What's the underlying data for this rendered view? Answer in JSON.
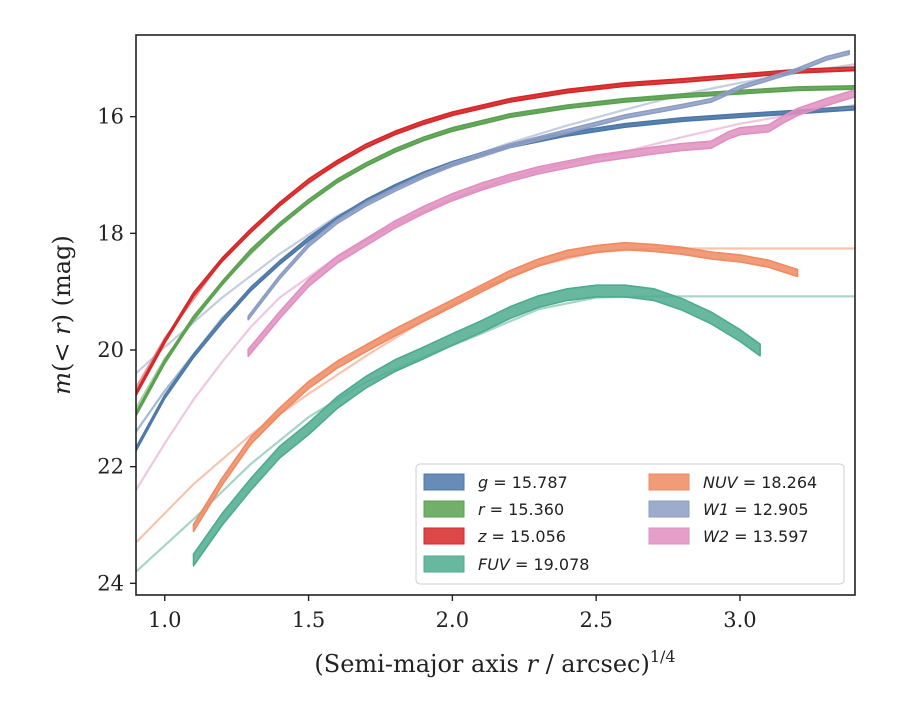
{
  "chart_data": {
    "type": "line",
    "title": "",
    "xlabel_main": "(Semi-major axis ",
    "xlabel_var": "r",
    "xlabel_tail": " / arcsec)",
    "xlabel_sup": "1/4",
    "ylabel_main": "m",
    "ylabel_paren": "(< ",
    "ylabel_var": "r",
    "ylabel_tail": ") (mag)",
    "xlim": [
      0.9,
      3.4
    ],
    "ylim": [
      24.2,
      14.6
    ],
    "y_inverted": true,
    "xticks": [
      1.0,
      1.5,
      2.0,
      2.5,
      3.0
    ],
    "xtick_labels": [
      "1.0",
      "1.5",
      "2.0",
      "2.5",
      "3.0"
    ],
    "yticks": [
      16,
      18,
      20,
      22,
      24
    ],
    "ytick_labels": [
      "16",
      "18",
      "20",
      "22",
      "24"
    ],
    "grid": false,
    "legend_position": "lower-right",
    "series": [
      {
        "name": "g",
        "legend_symbol": "g",
        "legend_value": "15.787",
        "color": "#4c78a8",
        "band_width": 0.06,
        "data": [
          [
            0.9,
            21.7
          ],
          [
            1.0,
            20.8
          ],
          [
            1.1,
            20.1
          ],
          [
            1.2,
            19.5
          ],
          [
            1.3,
            18.95
          ],
          [
            1.4,
            18.5
          ],
          [
            1.5,
            18.1
          ],
          [
            1.6,
            17.75
          ],
          [
            1.7,
            17.45
          ],
          [
            1.8,
            17.2
          ],
          [
            1.9,
            16.98
          ],
          [
            2.0,
            16.8
          ],
          [
            2.2,
            16.5
          ],
          [
            2.4,
            16.3
          ],
          [
            2.6,
            16.15
          ],
          [
            2.8,
            16.05
          ],
          [
            3.0,
            15.98
          ],
          [
            3.2,
            15.92
          ],
          [
            3.4,
            15.85
          ]
        ],
        "model": [
          [
            0.9,
            21.4
          ],
          [
            1.0,
            20.7
          ],
          [
            1.2,
            19.45
          ],
          [
            1.4,
            18.5
          ],
          [
            1.6,
            17.75
          ],
          [
            1.8,
            17.2
          ],
          [
            2.0,
            16.8
          ],
          [
            2.2,
            16.5
          ],
          [
            2.4,
            16.3
          ],
          [
            2.6,
            16.15
          ],
          [
            2.8,
            16.05
          ],
          [
            3.0,
            15.98
          ],
          [
            3.4,
            15.88
          ]
        ]
      },
      {
        "name": "r",
        "legend_symbol": "r",
        "legend_value": "15.360",
        "color": "#59a14f",
        "band_width": 0.06,
        "data": [
          [
            0.9,
            21.1
          ],
          [
            1.0,
            20.2
          ],
          [
            1.1,
            19.45
          ],
          [
            1.2,
            18.85
          ],
          [
            1.3,
            18.3
          ],
          [
            1.4,
            17.85
          ],
          [
            1.5,
            17.45
          ],
          [
            1.6,
            17.1
          ],
          [
            1.7,
            16.82
          ],
          [
            1.8,
            16.58
          ],
          [
            1.9,
            16.38
          ],
          [
            2.0,
            16.22
          ],
          [
            2.2,
            15.98
          ],
          [
            2.4,
            15.83
          ],
          [
            2.6,
            15.72
          ],
          [
            2.8,
            15.64
          ],
          [
            3.0,
            15.58
          ],
          [
            3.2,
            15.52
          ],
          [
            3.4,
            15.5
          ]
        ],
        "model": [
          [
            0.9,
            21.0
          ],
          [
            1.0,
            20.15
          ],
          [
            1.2,
            18.85
          ],
          [
            1.4,
            17.85
          ],
          [
            1.6,
            17.1
          ],
          [
            1.8,
            16.58
          ],
          [
            2.0,
            16.22
          ],
          [
            2.2,
            15.98
          ],
          [
            2.4,
            15.83
          ],
          [
            2.6,
            15.72
          ],
          [
            2.8,
            15.64
          ],
          [
            3.0,
            15.58
          ],
          [
            3.4,
            15.5
          ]
        ]
      },
      {
        "name": "z",
        "legend_symbol": "z",
        "legend_value": "15.056",
        "color": "#d62728",
        "band_width": 0.06,
        "data": [
          [
            0.9,
            20.75
          ],
          [
            1.0,
            19.85
          ],
          [
            1.1,
            19.05
          ],
          [
            1.2,
            18.45
          ],
          [
            1.3,
            17.95
          ],
          [
            1.4,
            17.5
          ],
          [
            1.5,
            17.1
          ],
          [
            1.6,
            16.78
          ],
          [
            1.7,
            16.5
          ],
          [
            1.8,
            16.28
          ],
          [
            1.9,
            16.1
          ],
          [
            2.0,
            15.95
          ],
          [
            2.2,
            15.72
          ],
          [
            2.4,
            15.56
          ],
          [
            2.6,
            15.45
          ],
          [
            2.8,
            15.38
          ],
          [
            3.0,
            15.3
          ],
          [
            3.2,
            15.22
          ],
          [
            3.4,
            15.18
          ]
        ],
        "model": [
          [
            0.9,
            20.65
          ],
          [
            1.0,
            19.8
          ],
          [
            1.2,
            18.45
          ],
          [
            1.4,
            17.5
          ],
          [
            1.6,
            16.78
          ],
          [
            1.8,
            16.28
          ],
          [
            2.0,
            15.95
          ],
          [
            2.2,
            15.72
          ],
          [
            2.4,
            15.56
          ],
          [
            2.6,
            15.45
          ],
          [
            2.8,
            15.36
          ],
          [
            3.0,
            15.29
          ],
          [
            3.4,
            15.2
          ]
        ]
      },
      {
        "name": "FUV",
        "legend_symbol": "FUV",
        "legend_value": "19.078",
        "color": "#4dab8f",
        "band_width": 0.2,
        "data": [
          [
            1.1,
            23.6
          ],
          [
            1.2,
            22.9
          ],
          [
            1.3,
            22.3
          ],
          [
            1.4,
            21.75
          ],
          [
            1.5,
            21.35
          ],
          [
            1.6,
            20.9
          ],
          [
            1.7,
            20.55
          ],
          [
            1.8,
            20.27
          ],
          [
            1.9,
            20.05
          ],
          [
            2.0,
            19.82
          ],
          [
            2.1,
            19.6
          ],
          [
            2.2,
            19.36
          ],
          [
            2.3,
            19.17
          ],
          [
            2.4,
            19.05
          ],
          [
            2.5,
            18.99
          ],
          [
            2.6,
            18.99
          ],
          [
            2.7,
            19.05
          ],
          [
            2.8,
            19.22
          ],
          [
            2.9,
            19.45
          ],
          [
            3.0,
            19.75
          ],
          [
            3.07,
            20.0
          ]
        ],
        "model": [
          [
            0.9,
            23.8
          ],
          [
            1.1,
            22.9
          ],
          [
            1.3,
            21.95
          ],
          [
            1.5,
            21.15
          ],
          [
            1.7,
            20.55
          ],
          [
            1.9,
            20.12
          ],
          [
            2.1,
            19.72
          ],
          [
            2.3,
            19.3
          ],
          [
            2.5,
            19.1
          ],
          [
            2.7,
            19.08
          ],
          [
            3.0,
            19.08
          ],
          [
            3.4,
            19.08
          ]
        ]
      },
      {
        "name": "NUV",
        "legend_symbol": "NUV",
        "legend_value": "18.264",
        "color": "#ef8a62",
        "band_width": 0.12,
        "data": [
          [
            1.1,
            23.05
          ],
          [
            1.2,
            22.25
          ],
          [
            1.3,
            21.55
          ],
          [
            1.4,
            21.05
          ],
          [
            1.5,
            20.6
          ],
          [
            1.6,
            20.25
          ],
          [
            1.7,
            19.97
          ],
          [
            1.8,
            19.7
          ],
          [
            1.9,
            19.45
          ],
          [
            2.0,
            19.2
          ],
          [
            2.1,
            18.95
          ],
          [
            2.2,
            18.7
          ],
          [
            2.3,
            18.5
          ],
          [
            2.4,
            18.35
          ],
          [
            2.5,
            18.27
          ],
          [
            2.6,
            18.22
          ],
          [
            2.7,
            18.25
          ],
          [
            2.8,
            18.3
          ],
          [
            2.9,
            18.38
          ],
          [
            3.0,
            18.43
          ],
          [
            3.1,
            18.52
          ],
          [
            3.2,
            18.68
          ]
        ],
        "model": [
          [
            0.9,
            23.3
          ],
          [
            1.1,
            22.3
          ],
          [
            1.3,
            21.45
          ],
          [
            1.5,
            20.75
          ],
          [
            1.7,
            20.1
          ],
          [
            1.9,
            19.5
          ],
          [
            2.1,
            18.95
          ],
          [
            2.3,
            18.55
          ],
          [
            2.5,
            18.32
          ],
          [
            2.7,
            18.26
          ],
          [
            3.0,
            18.26
          ],
          [
            3.4,
            18.26
          ]
        ]
      },
      {
        "name": "W1",
        "legend_symbol": "W1",
        "legend_value": "12.905",
        "color": "#8c9dc4",
        "band_width": 0.06,
        "data": [
          [
            1.29,
            19.45
          ],
          [
            1.4,
            18.75
          ],
          [
            1.5,
            18.2
          ],
          [
            1.6,
            17.8
          ],
          [
            1.7,
            17.5
          ],
          [
            1.8,
            17.25
          ],
          [
            1.9,
            17.02
          ],
          [
            2.0,
            16.82
          ],
          [
            2.2,
            16.5
          ],
          [
            2.4,
            16.25
          ],
          [
            2.6,
            16.0
          ],
          [
            2.8,
            15.82
          ],
          [
            2.9,
            15.72
          ],
          [
            3.0,
            15.5
          ],
          [
            3.1,
            15.35
          ],
          [
            3.2,
            15.2
          ],
          [
            3.3,
            15.0
          ],
          [
            3.38,
            14.9
          ]
        ],
        "model": [
          [
            0.9,
            20.4
          ],
          [
            1.0,
            19.95
          ],
          [
            1.2,
            19.1
          ],
          [
            1.4,
            18.35
          ],
          [
            1.6,
            17.7
          ],
          [
            1.8,
            17.2
          ],
          [
            2.0,
            16.8
          ],
          [
            2.2,
            16.45
          ],
          [
            2.4,
            16.15
          ],
          [
            2.6,
            15.88
          ],
          [
            2.8,
            15.62
          ],
          [
            3.0,
            15.42
          ],
          [
            3.2,
            15.25
          ],
          [
            3.4,
            15.1
          ]
        ]
      },
      {
        "name": "W2",
        "legend_symbol": "W2",
        "legend_value": "13.597",
        "color": "#e08fc0",
        "band_width": 0.12,
        "data": [
          [
            1.29,
            20.05
          ],
          [
            1.4,
            19.4
          ],
          [
            1.5,
            18.85
          ],
          [
            1.6,
            18.45
          ],
          [
            1.7,
            18.15
          ],
          [
            1.8,
            17.85
          ],
          [
            1.9,
            17.6
          ],
          [
            2.0,
            17.38
          ],
          [
            2.1,
            17.2
          ],
          [
            2.2,
            17.05
          ],
          [
            2.3,
            16.92
          ],
          [
            2.4,
            16.82
          ],
          [
            2.5,
            16.72
          ],
          [
            2.6,
            16.65
          ],
          [
            2.7,
            16.58
          ],
          [
            2.8,
            16.52
          ],
          [
            2.9,
            16.48
          ],
          [
            2.96,
            16.32
          ],
          [
            3.0,
            16.25
          ],
          [
            3.1,
            16.2
          ],
          [
            3.15,
            16.05
          ],
          [
            3.2,
            15.92
          ],
          [
            3.3,
            15.75
          ],
          [
            3.4,
            15.6
          ]
        ],
        "model": [
          [
            0.9,
            22.4
          ],
          [
            1.0,
            21.6
          ],
          [
            1.1,
            20.85
          ],
          [
            1.2,
            20.2
          ],
          [
            1.3,
            19.6
          ],
          [
            1.4,
            19.1
          ],
          [
            1.6,
            18.4
          ],
          [
            1.8,
            17.85
          ],
          [
            2.0,
            17.4
          ],
          [
            2.2,
            17.05
          ],
          [
            2.4,
            16.8
          ],
          [
            2.6,
            16.6
          ],
          [
            2.8,
            16.35
          ],
          [
            3.0,
            16.12
          ],
          [
            3.2,
            15.95
          ],
          [
            3.4,
            15.8
          ]
        ]
      }
    ]
  }
}
